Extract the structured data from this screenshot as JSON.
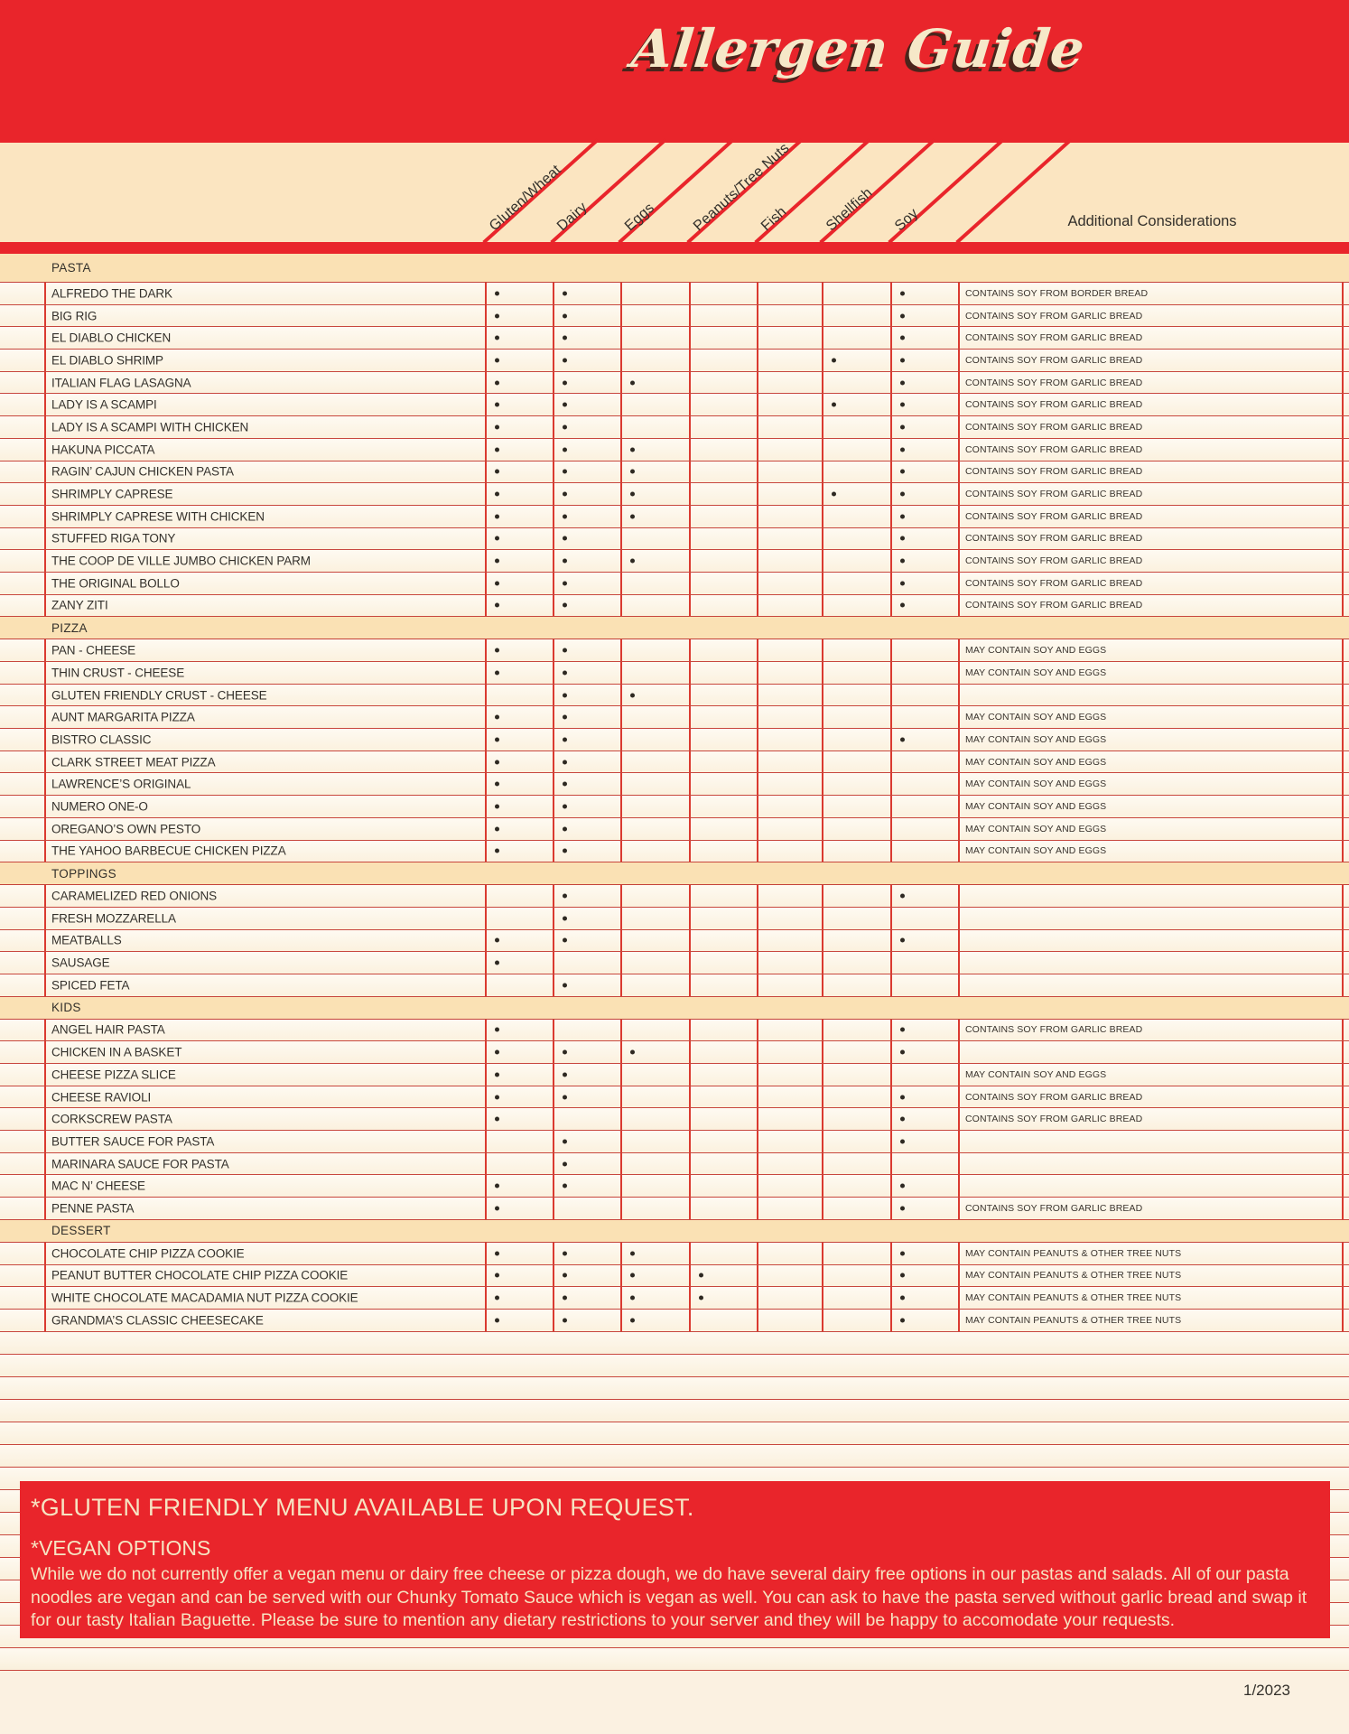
{
  "title": "Allergen Guide",
  "additional_considerations_label": "Additional Considerations",
  "allergen_columns": [
    {
      "key": "gluten_wheat",
      "label": "Gluten/Wheat"
    },
    {
      "key": "dairy",
      "label": "Dairy"
    },
    {
      "key": "eggs",
      "label": "Eggs"
    },
    {
      "key": "peanuts_tree_nuts",
      "label": "Peanuts/Tree Nuts"
    },
    {
      "key": "fish",
      "label": "Fish"
    },
    {
      "key": "shellfish",
      "label": "Shellfish"
    },
    {
      "key": "soy",
      "label": "Soy"
    }
  ],
  "sections": [
    {
      "label": "PASTA",
      "items": [
        {
          "name": "ALFREDO THE DARK",
          "allergens": [
            "gluten_wheat",
            "dairy",
            "soy"
          ],
          "note": "CONTAINS SOY FROM BORDER BREAD"
        },
        {
          "name": "BIG RIG",
          "allergens": [
            "gluten_wheat",
            "dairy",
            "soy"
          ],
          "note": "CONTAINS SOY FROM GARLIC BREAD"
        },
        {
          "name": "EL DIABLO CHICKEN",
          "allergens": [
            "gluten_wheat",
            "dairy",
            "soy"
          ],
          "note": "CONTAINS SOY FROM GARLIC BREAD"
        },
        {
          "name": "EL DIABLO SHRIMP",
          "allergens": [
            "gluten_wheat",
            "dairy",
            "shellfish",
            "soy"
          ],
          "note": "CONTAINS SOY FROM GARLIC BREAD"
        },
        {
          "name": "ITALIAN FLAG LASAGNA",
          "allergens": [
            "gluten_wheat",
            "dairy",
            "eggs",
            "soy"
          ],
          "note": "CONTAINS SOY FROM GARLIC BREAD"
        },
        {
          "name": "LADY IS A SCAMPI",
          "allergens": [
            "gluten_wheat",
            "dairy",
            "shellfish",
            "soy"
          ],
          "note": "CONTAINS SOY FROM GARLIC BREAD"
        },
        {
          "name": "LADY IS A SCAMPI WITH CHICKEN",
          "allergens": [
            "gluten_wheat",
            "dairy",
            "soy"
          ],
          "note": "CONTAINS SOY FROM GARLIC BREAD"
        },
        {
          "name": "HAKUNA PICCATA",
          "allergens": [
            "gluten_wheat",
            "dairy",
            "eggs",
            "soy"
          ],
          "note": "CONTAINS SOY FROM GARLIC BREAD"
        },
        {
          "name": "RAGIN’ CAJUN CHICKEN PASTA",
          "allergens": [
            "gluten_wheat",
            "dairy",
            "eggs",
            "soy"
          ],
          "note": "CONTAINS SOY FROM GARLIC BREAD"
        },
        {
          "name": "SHRIMPLY CAPRESE",
          "allergens": [
            "gluten_wheat",
            "dairy",
            "eggs",
            "shellfish",
            "soy"
          ],
          "note": "CONTAINS SOY FROM GARLIC BREAD"
        },
        {
          "name": "SHRIMPLY CAPRESE WITH CHICKEN",
          "allergens": [
            "gluten_wheat",
            "dairy",
            "eggs",
            "soy"
          ],
          "note": "CONTAINS SOY FROM GARLIC BREAD"
        },
        {
          "name": "STUFFED RIGA TONY",
          "allergens": [
            "gluten_wheat",
            "dairy",
            "soy"
          ],
          "note": "CONTAINS SOY FROM GARLIC BREAD"
        },
        {
          "name": "THE COOP DE VILLE JUMBO CHICKEN PARM",
          "allergens": [
            "gluten_wheat",
            "dairy",
            "eggs",
            "soy"
          ],
          "note": "CONTAINS SOY FROM GARLIC BREAD"
        },
        {
          "name": "THE ORIGINAL BOLLO",
          "allergens": [
            "gluten_wheat",
            "dairy",
            "soy"
          ],
          "note": "CONTAINS SOY FROM GARLIC BREAD"
        },
        {
          "name": "ZANY ZITI",
          "allergens": [
            "gluten_wheat",
            "dairy",
            "soy"
          ],
          "note": "CONTAINS SOY FROM GARLIC BREAD"
        }
      ]
    },
    {
      "label": "PIZZA",
      "items": [
        {
          "name": "PAN - CHEESE",
          "allergens": [
            "gluten_wheat",
            "dairy"
          ],
          "note": "MAY CONTAIN SOY AND EGGS"
        },
        {
          "name": "THIN CRUST - CHEESE",
          "allergens": [
            "gluten_wheat",
            "dairy"
          ],
          "note": "MAY CONTAIN SOY AND EGGS"
        },
        {
          "name": "GLUTEN FRIENDLY CRUST - CHEESE",
          "allergens": [
            "dairy",
            "eggs"
          ],
          "note": ""
        },
        {
          "name": "AUNT MARGARITA PIZZA",
          "allergens": [
            "gluten_wheat",
            "dairy"
          ],
          "note": "MAY CONTAIN SOY AND EGGS"
        },
        {
          "name": "BISTRO CLASSIC",
          "allergens": [
            "gluten_wheat",
            "dairy",
            "soy"
          ],
          "note": "MAY CONTAIN SOY AND EGGS"
        },
        {
          "name": "CLARK STREET MEAT PIZZA",
          "allergens": [
            "gluten_wheat",
            "dairy"
          ],
          "note": "MAY CONTAIN SOY AND EGGS"
        },
        {
          "name": "LAWRENCE’S ORIGINAL",
          "allergens": [
            "gluten_wheat",
            "dairy"
          ],
          "note": "MAY CONTAIN SOY AND EGGS"
        },
        {
          "name": "NUMERO ONE-O",
          "allergens": [
            "gluten_wheat",
            "dairy"
          ],
          "note": "MAY CONTAIN SOY AND EGGS"
        },
        {
          "name": "OREGANO’S OWN PESTO",
          "allergens": [
            "gluten_wheat",
            "dairy"
          ],
          "note": "MAY CONTAIN SOY AND EGGS"
        },
        {
          "name": "THE YAHOO BARBECUE CHICKEN PIZZA",
          "allergens": [
            "gluten_wheat",
            "dairy"
          ],
          "note": "MAY CONTAIN SOY AND EGGS"
        }
      ]
    },
    {
      "label": "TOPPINGS",
      "items": [
        {
          "name": "CARAMELIZED RED ONIONS",
          "allergens": [
            "dairy",
            "soy"
          ],
          "note": ""
        },
        {
          "name": "FRESH MOZZARELLA",
          "allergens": [
            "dairy"
          ],
          "note": ""
        },
        {
          "name": "MEATBALLS",
          "allergens": [
            "gluten_wheat",
            "dairy",
            "soy"
          ],
          "note": ""
        },
        {
          "name": "SAUSAGE",
          "allergens": [
            "gluten_wheat"
          ],
          "note": ""
        },
        {
          "name": "SPICED FETA",
          "allergens": [
            "dairy"
          ],
          "note": ""
        }
      ]
    },
    {
      "label": "KIDS",
      "items": [
        {
          "name": "ANGEL HAIR PASTA",
          "allergens": [
            "gluten_wheat",
            "soy"
          ],
          "note": "CONTAINS SOY FROM GARLIC BREAD"
        },
        {
          "name": "CHICKEN IN A BASKET",
          "allergens": [
            "gluten_wheat",
            "dairy",
            "eggs",
            "soy"
          ],
          "note": ""
        },
        {
          "name": "CHEESE PIZZA SLICE",
          "allergens": [
            "gluten_wheat",
            "dairy"
          ],
          "note": "MAY CONTAIN SOY AND EGGS"
        },
        {
          "name": "CHEESE RAVIOLI",
          "allergens": [
            "gluten_wheat",
            "dairy",
            "soy"
          ],
          "note": "CONTAINS SOY FROM GARLIC BREAD"
        },
        {
          "name": "CORKSCREW PASTA",
          "allergens": [
            "gluten_wheat",
            "soy"
          ],
          "note": "CONTAINS SOY FROM GARLIC BREAD"
        },
        {
          "name": "BUTTER SAUCE FOR PASTA",
          "allergens": [
            "dairy",
            "soy"
          ],
          "note": ""
        },
        {
          "name": "MARINARA SAUCE FOR PASTA",
          "allergens": [
            "dairy"
          ],
          "note": ""
        },
        {
          "name": "MAC N’ CHEESE",
          "allergens": [
            "gluten_wheat",
            "dairy",
            "soy"
          ],
          "note": ""
        },
        {
          "name": "PENNE PASTA",
          "allergens": [
            "gluten_wheat",
            "soy"
          ],
          "note": "CONTAINS SOY FROM GARLIC BREAD"
        }
      ]
    },
    {
      "label": "DESSERT",
      "items": [
        {
          "name": "CHOCOLATE CHIP PIZZA COOKIE",
          "allergens": [
            "gluten_wheat",
            "dairy",
            "eggs",
            "soy"
          ],
          "note": "MAY CONTAIN PEANUTS & OTHER TREE NUTS"
        },
        {
          "name": "PEANUT BUTTER CHOCOLATE CHIP PIZZA COOKIE",
          "allergens": [
            "gluten_wheat",
            "dairy",
            "eggs",
            "peanuts_tree_nuts",
            "soy"
          ],
          "note": "MAY CONTAIN PEANUTS & OTHER TREE NUTS"
        },
        {
          "name": "WHITE CHOCOLATE MACADAMIA NUT PIZZA COOKIE",
          "allergens": [
            "gluten_wheat",
            "dairy",
            "eggs",
            "peanuts_tree_nuts",
            "soy"
          ],
          "note": "MAY CONTAIN PEANUTS & OTHER TREE NUTS"
        },
        {
          "name": "GRANDMA’S CLASSIC CHEESECAKE",
          "allergens": [
            "gluten_wheat",
            "dairy",
            "eggs",
            "soy"
          ],
          "note": "MAY CONTAIN PEANUTS & OTHER TREE NUTS"
        }
      ]
    }
  ],
  "footer_box": {
    "gluten_note": "*GLUTEN FRIENDLY MENU AVAILABLE UPON REQUEST.",
    "vegan_heading": "*VEGAN OPTIONS",
    "vegan_text": "While we do not currently offer a vegan menu or dairy free cheese or pizza dough, we do have several dairy free options in our pastas and salads. All of our pasta noodles are vegan and can be served with our Chunky Tomato Sauce which is vegan as well. You can ask to have the pasta served without garlic bread and swap it for our tasty Italian Baguette. Please be sure to mention any dietary restrictions to your server and they will be happy to accomodate your requests.",
    "date": "1/2023"
  },
  "colors": {
    "red": "#E9252B",
    "tan_header": "#FBE5C1",
    "section_band": "#FAE1B4",
    "row_cream": "#FBF1DE",
    "grid_red": "#DA3A30",
    "text_dark": "#33302B",
    "title_cream": "#F6E8C8"
  }
}
